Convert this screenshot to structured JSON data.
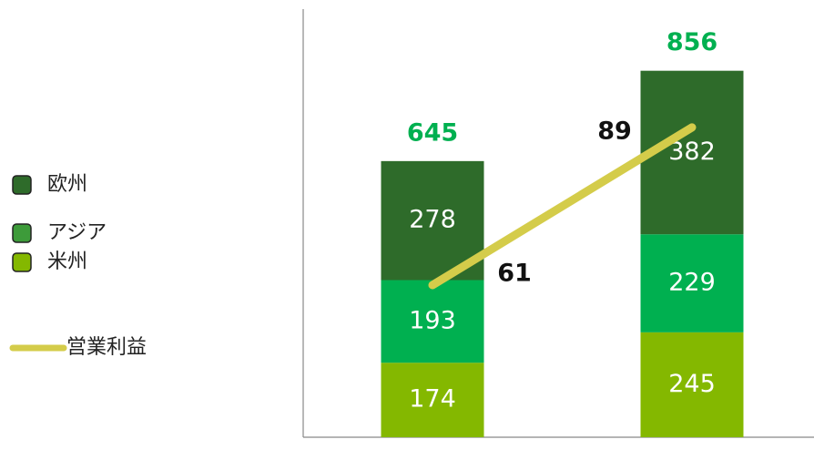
{
  "chart_data": {
    "type": "bar",
    "categories": [
      null,
      null
    ],
    "stacked": true,
    "series": [
      {
        "name": "米州",
        "color": "#84b800",
        "values": [
          174,
          245
        ]
      },
      {
        "name": "アジア",
        "color": "#00b050",
        "legend_color": "#3d9b3a",
        "values": [
          193,
          229
        ]
      },
      {
        "name": "欧州",
        "color": "#2e6b2a",
        "values": [
          278,
          382
        ]
      },
      {
        "name": "営業利益",
        "type": "line",
        "axis": "y2",
        "color": "#d4cc4a",
        "values": [
          61,
          89
        ]
      }
    ],
    "totals": [
      645,
      856
    ],
    "totals_color": "#00b050",
    "ylim": [
      0,
      1000
    ],
    "y2lim": [
      34,
      110
    ],
    "legend": "left"
  }
}
